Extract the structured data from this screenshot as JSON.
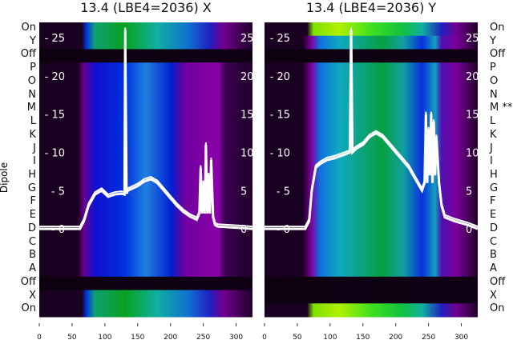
{
  "panels": [
    {
      "title": "13.4 (LBE4=2036) X",
      "row_labels": [
        "On",
        "Y",
        "Off",
        "P",
        "O",
        "N",
        "M",
        "L",
        "K",
        "J",
        "I",
        "H",
        "G",
        "F",
        "E",
        "D",
        "C",
        "B",
        "A",
        "Off",
        "X",
        "On"
      ]
    },
    {
      "title": "13.4 (LBE4=2036) Y",
      "row_labels": [
        "On",
        "Y",
        "Off",
        "P",
        "O",
        "N",
        "M **",
        "L",
        "K",
        "J",
        "I",
        "H",
        "G",
        "F",
        "E",
        "D",
        "C",
        "B",
        "A",
        "Off",
        "X",
        "On"
      ]
    }
  ],
  "ylabel": "Dipole",
  "chart_data": [
    {
      "type": "heatmap",
      "title": "13.4 (LBE4=2036) X",
      "ylabel": "Dipole",
      "xlim": [
        0,
        325
      ],
      "ylim_profile": [
        -11.5,
        27
      ],
      "x_ticks": [
        0,
        50,
        100,
        150,
        200,
        250,
        300
      ],
      "profile_ticks": [
        0,
        5,
        10,
        15,
        20,
        25
      ],
      "profile": {
        "x": [
          0,
          62,
          68,
          75,
          85,
          95,
          105,
          115,
          125,
          130,
          131,
          133,
          135,
          140,
          150,
          160,
          170,
          180,
          190,
          200,
          210,
          220,
          230,
          240,
          244,
          246,
          248,
          250,
          252,
          254,
          256,
          258,
          260,
          262,
          265,
          268,
          272,
          290,
          310,
          325
        ],
        "y": [
          0,
          0,
          1,
          3,
          4.5,
          5,
          4.2,
          4.5,
          4.6,
          4.5,
          26,
          4.6,
          5,
          5.2,
          5.6,
          6.2,
          6.5,
          6,
          5,
          4,
          3,
          2.2,
          1.6,
          1.2,
          2,
          8,
          2,
          6,
          2,
          11,
          2,
          7,
          2,
          9,
          1.5,
          0.5,
          0.3,
          0.2,
          0.1,
          0
        ]
      }
    },
    {
      "type": "heatmap",
      "title": "13.4 (LBE4=2036) Y",
      "ylabel": "Dipole",
      "xlim": [
        0,
        325
      ],
      "ylim_profile": [
        -11.5,
        27
      ],
      "x_ticks": [
        0,
        50,
        100,
        150,
        200,
        250,
        300
      ],
      "profile_ticks": [
        0,
        5,
        10,
        15,
        20,
        25
      ],
      "profile": {
        "x": [
          0,
          62,
          68,
          72,
          78,
          85,
          95,
          105,
          115,
          125,
          130,
          132,
          134,
          140,
          150,
          160,
          170,
          180,
          190,
          200,
          210,
          220,
          230,
          240,
          244,
          246,
          248,
          250,
          252,
          254,
          256,
          258,
          260,
          262,
          266,
          270,
          275,
          290,
          310,
          325
        ],
        "y": [
          0,
          0,
          1,
          5,
          8,
          8.5,
          9,
          9.2,
          9.5,
          9.8,
          10,
          26,
          10,
          10.5,
          11,
          12,
          12.5,
          12,
          11,
          10,
          9,
          8,
          6.5,
          5,
          6,
          15,
          6,
          13,
          7,
          15,
          6,
          14,
          7,
          12,
          6,
          3,
          1.5,
          1,
          0.5,
          0
        ]
      }
    }
  ]
}
